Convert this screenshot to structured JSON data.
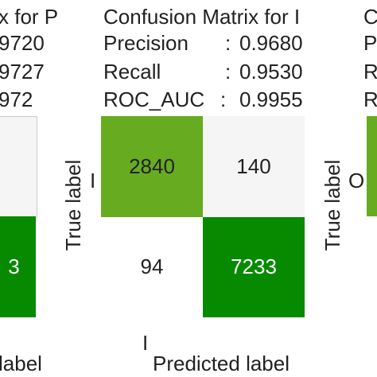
{
  "colors": {
    "dark_green": "#078a00",
    "light_green": "#67ab21",
    "light_gray": "#f5f5f5",
    "white": "#ffffff",
    "border": "#cccccc"
  },
  "left_panel": {
    "title_fragment": "x for P",
    "precision_fragment": "9720",
    "recall_fragment": "9727",
    "roc_fragment": "972",
    "cell_value_fragment": "3",
    "xlabel_fragment": "label"
  },
  "right_panel": {
    "title_fragment": "C",
    "row1_fragment": "P",
    "row2_fragment": "R",
    "row3_fragment": "R",
    "ylabel": "True label",
    "tick_fragment": "O"
  },
  "chart_data": [
    {
      "type": "heatmap",
      "title": "Confusion Matrix for I",
      "metrics": [
        {
          "label": "Precision",
          "sep": ":",
          "value": "0.9680"
        },
        {
          "label": "Recall",
          "sep": ":",
          "value": "0.9530"
        },
        {
          "label": "ROC_AUC",
          "sep": ":",
          "value": "0.9955"
        }
      ],
      "ylabel": "True label",
      "xlabel": "Predicted label",
      "y_tick": "I",
      "x_tick": "I",
      "matrix": [
        [
          2840,
          140
        ],
        [
          94,
          7233
        ]
      ],
      "cell_colors": [
        [
          "#67ab21",
          "#f5f5f5"
        ],
        [
          "#ffffff",
          "#078a00"
        ]
      ],
      "cell_text_colors": [
        [
          "#222222",
          "#222222"
        ],
        [
          "#222222",
          "#ffffff"
        ]
      ]
    }
  ]
}
